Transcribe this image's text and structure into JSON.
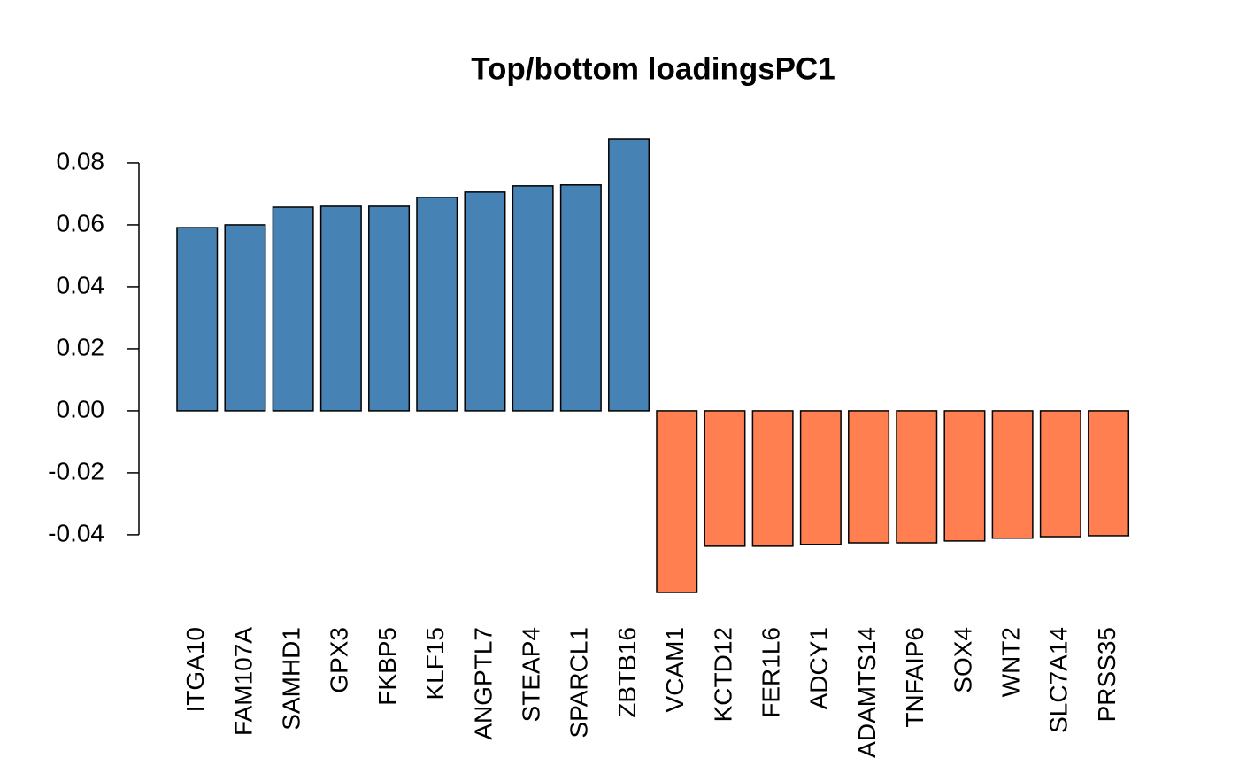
{
  "chart_data": {
    "type": "bar",
    "title": "Top/bottom loadingsPC1",
    "categories": [
      "ITGA10",
      "FAM107A",
      "SAMHD1",
      "GPX3",
      "FKBP5",
      "KLF15",
      "ANGPTL7",
      "STEAP4",
      "SPARCL1",
      "ZBTB16",
      "VCAM1",
      "KCTD12",
      "FER1L6",
      "ADCY1",
      "ADAMTS14",
      "TNFAIP6",
      "SOX4",
      "WNT2",
      "SLC7A14",
      "PRSS35"
    ],
    "values": [
      0.0591,
      0.06,
      0.0657,
      0.066,
      0.066,
      0.0689,
      0.0706,
      0.0726,
      0.0729,
      0.0877,
      -0.0586,
      -0.0437,
      -0.0437,
      -0.0431,
      -0.0426,
      -0.0426,
      -0.042,
      -0.0411,
      -0.0406,
      -0.0403
    ],
    "colors": [
      "#4682b4",
      "#4682b4",
      "#4682b4",
      "#4682b4",
      "#4682b4",
      "#4682b4",
      "#4682b4",
      "#4682b4",
      "#4682b4",
      "#4682b4",
      "#ff7f50",
      "#ff7f50",
      "#ff7f50",
      "#ff7f50",
      "#ff7f50",
      "#ff7f50",
      "#ff7f50",
      "#ff7f50",
      "#ff7f50",
      "#ff7f50"
    ],
    "ylim": [
      -0.0586,
      0.0877
    ],
    "yticks": [
      -0.04,
      -0.02,
      {
        "value": 0,
        "label": "0.00"
      },
      0.02,
      0.04,
      0.06,
      0.08
    ]
  }
}
